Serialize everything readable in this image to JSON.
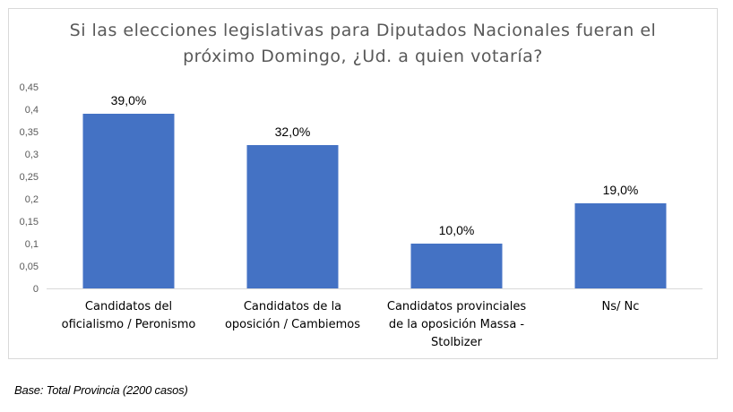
{
  "chart_data": {
    "type": "bar",
    "title_lines": [
      "Si las elecciones legislativas para Diputados Nacionales fueran el",
      "próximo Domingo, ¿Ud. a quien votaría?"
    ],
    "categories": [
      [
        "Candidatos  del",
        "oficialismo / Peronismo"
      ],
      [
        "Candidatos  de la",
        "oposición  / Cambiemos"
      ],
      [
        "Candidatos  provinciales",
        "de la oposición  Massa -",
        "Stolbizer"
      ],
      [
        "Ns/ Nc"
      ]
    ],
    "values": [
      0.39,
      0.32,
      0.1,
      0.19
    ],
    "data_labels": [
      "39,0%",
      "32,0%",
      "10,0%",
      "19,0%"
    ],
    "y_ticks": [
      "0",
      "0,05",
      "0,1",
      "0,15",
      "0,2",
      "0,25",
      "0,3",
      "0,35",
      "0,4",
      "0,45"
    ],
    "ylim": [
      0,
      0.45
    ],
    "grid": false,
    "bar_color": "#4472c4"
  },
  "footnote": "Base: Total Provincia (2200 casos)"
}
